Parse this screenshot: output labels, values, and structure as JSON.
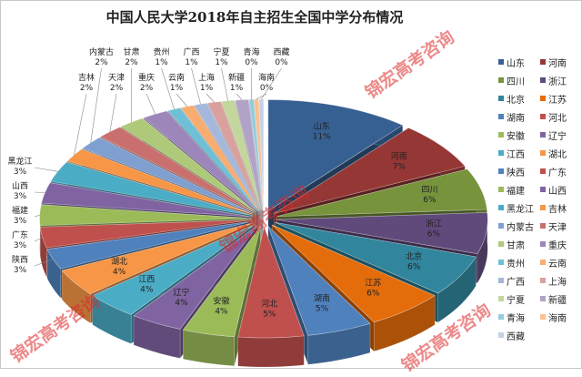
{
  "chart_data": {
    "type": "pie",
    "style": "3d-exploded",
    "title": "中国人民大学2018年自主招生全国中学分布情况",
    "label_format": "percent",
    "legend_position": "right",
    "categories": [
      "山东",
      "河南",
      "四川",
      "浙江",
      "北京",
      "江苏",
      "湖南",
      "河北",
      "安徽",
      "辽宁",
      "江西",
      "湖北",
      "陕西",
      "广东",
      "福建",
      "山西",
      "黑龙江",
      "吉林",
      "内蒙古",
      "天津",
      "甘肃",
      "重庆",
      "贵州",
      "云南",
      "广西",
      "上海",
      "宁夏",
      "新疆",
      "青海",
      "海南",
      "西藏"
    ],
    "values": [
      11,
      7,
      6,
      6,
      6,
      6,
      5,
      5,
      4,
      4,
      4,
      4,
      3,
      3,
      3,
      3,
      3,
      2,
      2,
      2,
      2,
      2,
      1,
      1,
      1,
      1,
      1,
      1,
      0,
      0,
      0
    ],
    "colors": [
      "#376092",
      "#953735",
      "#77933C",
      "#604A7B",
      "#31859C",
      "#E46C0A",
      "#4F81BD",
      "#C0504D",
      "#9BBB59",
      "#8064A2",
      "#4BACC6",
      "#F79646",
      "#4F81BD",
      "#C0504D",
      "#9BBB59",
      "#8064A2",
      "#4BACC6",
      "#F79646",
      "#7F9FD0",
      "#C96F6D",
      "#AFC97A",
      "#9C86BA",
      "#6FC0D6",
      "#F9AC70",
      "#A5B8DC",
      "#D9A09E",
      "#C3D69B",
      "#B3A2C7",
      "#93CDDD",
      "#FAC090",
      "#C6D1E6"
    ]
  },
  "watermark": "锦宏高考咨询"
}
